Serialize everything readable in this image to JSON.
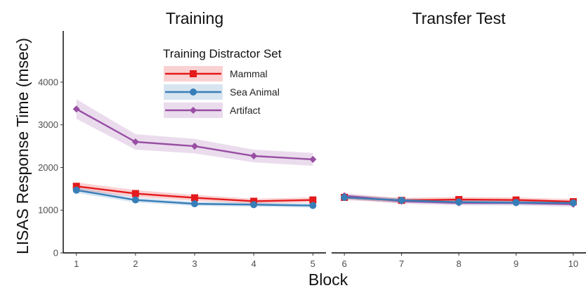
{
  "chart_data": {
    "type": "line",
    "ylabel": "LISAS Response Time (msec)",
    "xlabel": "Block",
    "ylim": [
      0,
      5200
    ],
    "yticks": [
      0,
      1000,
      2000,
      3000,
      4000
    ],
    "legend": {
      "title": "Training Distractor Set",
      "position": "top-left"
    },
    "grid": false,
    "colors": {
      "Mammal": "#e41a1c",
      "Sea Animal": "#377eb8",
      "Artifact": "#984ea3"
    },
    "markers": {
      "Mammal": "square",
      "Sea Animal": "circle",
      "Artifact": "diamond"
    },
    "panels": [
      {
        "title": "Training",
        "x": [
          1,
          2,
          3,
          4,
          5
        ],
        "series": [
          {
            "name": "Mammal",
            "values": [
              1560,
              1390,
              1290,
              1210,
              1240
            ],
            "band": [
              90,
              80,
              70,
              60,
              60
            ]
          },
          {
            "name": "Sea Animal",
            "values": [
              1470,
              1240,
              1150,
              1130,
              1110
            ],
            "band": [
              70,
              60,
              50,
              50,
              50
            ]
          },
          {
            "name": "Artifact",
            "values": [
              3370,
              2600,
              2500,
              2270,
              2190
            ],
            "band": [
              230,
              180,
              170,
              150,
              150
            ]
          }
        ]
      },
      {
        "title": "Transfer Test",
        "x": [
          6,
          7,
          8,
          9,
          10
        ],
        "series": [
          {
            "name": "Mammal",
            "values": [
              1300,
              1230,
              1250,
              1240,
              1200
            ],
            "band": [
              60,
              60,
              60,
              60,
              60
            ]
          },
          {
            "name": "Sea Animal",
            "values": [
              1300,
              1230,
              1190,
              1180,
              1170
            ],
            "band": [
              50,
              50,
              50,
              50,
              50
            ]
          },
          {
            "name": "Artifact",
            "values": [
              1340,
              1210,
              1170,
              1170,
              1140
            ],
            "band": [
              60,
              60,
              60,
              60,
              60
            ]
          }
        ]
      }
    ]
  }
}
